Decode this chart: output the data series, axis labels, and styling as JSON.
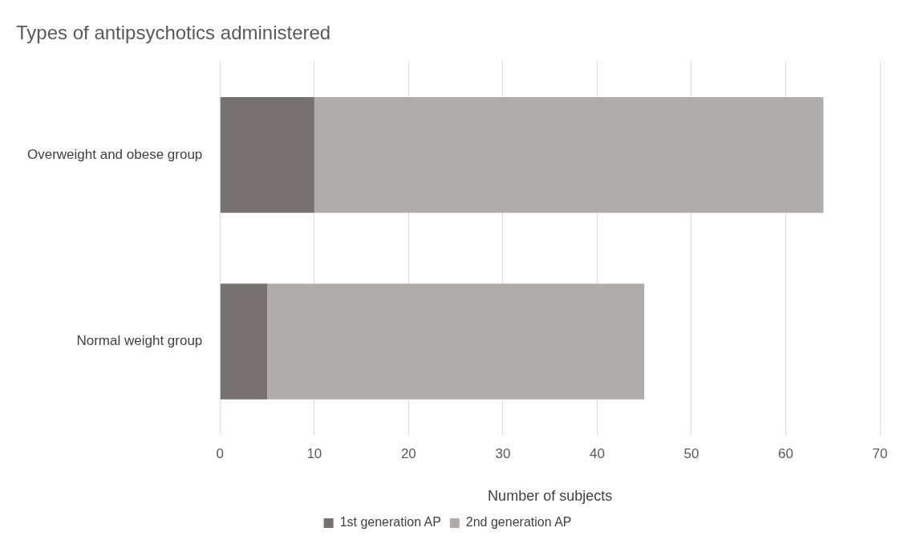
{
  "chart_data": {
    "type": "bar",
    "orientation": "horizontal",
    "stacked": true,
    "title": "Types of antipsychotics administered",
    "xlabel": "Number of subjects",
    "categories": [
      "Overweight and obese group",
      "Normal weight group"
    ],
    "series": [
      {
        "name": "1st generation AP",
        "color": "#777170",
        "values": [
          10,
          5
        ]
      },
      {
        "name": "2nd generation AP",
        "color": "#b0acab",
        "values": [
          54,
          40
        ]
      }
    ],
    "xlim": [
      0,
      70
    ],
    "xticks": [
      0,
      10,
      20,
      30,
      40,
      50,
      60,
      70
    ],
    "grid": "x",
    "legend": "bottom"
  }
}
